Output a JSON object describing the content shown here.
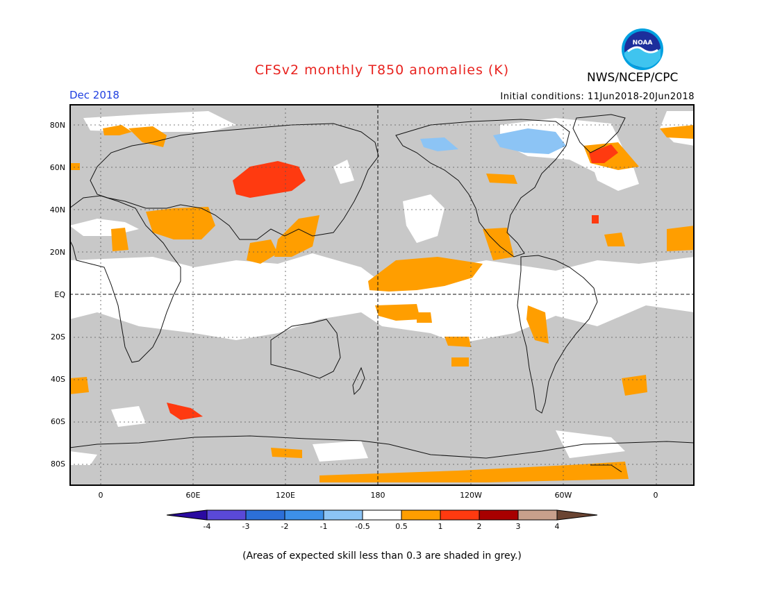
{
  "header": {
    "title": "CFSv2 monthly T850 anomalies (K)",
    "month": "Dec 2018",
    "agency": "NWS/NCEP/CPC",
    "initial_conditions": "Initial conditions: 11Jun2018-20Jun2018",
    "logo_text": "NOAA"
  },
  "map": {
    "lat_labels": [
      "80N",
      "60N",
      "40N",
      "20N",
      "EQ",
      "20S",
      "40S",
      "60S",
      "80S"
    ],
    "lon_labels": [
      "0",
      "60E",
      "120E",
      "180",
      "120W",
      "60W",
      "0"
    ],
    "skill_mask_color": "#c8c8c8",
    "background_color": "#ffffff"
  },
  "colorbar": {
    "colors": [
      "#2a0aa0",
      "#5a49d8",
      "#2c6fd8",
      "#3d90e8",
      "#8cc4f5",
      "#ffffff",
      "#ff9e00",
      "#ff3a10",
      "#a80000",
      "#c8a08c",
      "#6a4432"
    ],
    "labels": [
      "-4",
      "-3",
      "-2",
      "-1",
      "-0.5",
      "0.5",
      "1",
      "2",
      "3",
      "4"
    ]
  },
  "footer": {
    "note": "(Areas of expected skill less than 0.3 are shaded in grey.)"
  }
}
